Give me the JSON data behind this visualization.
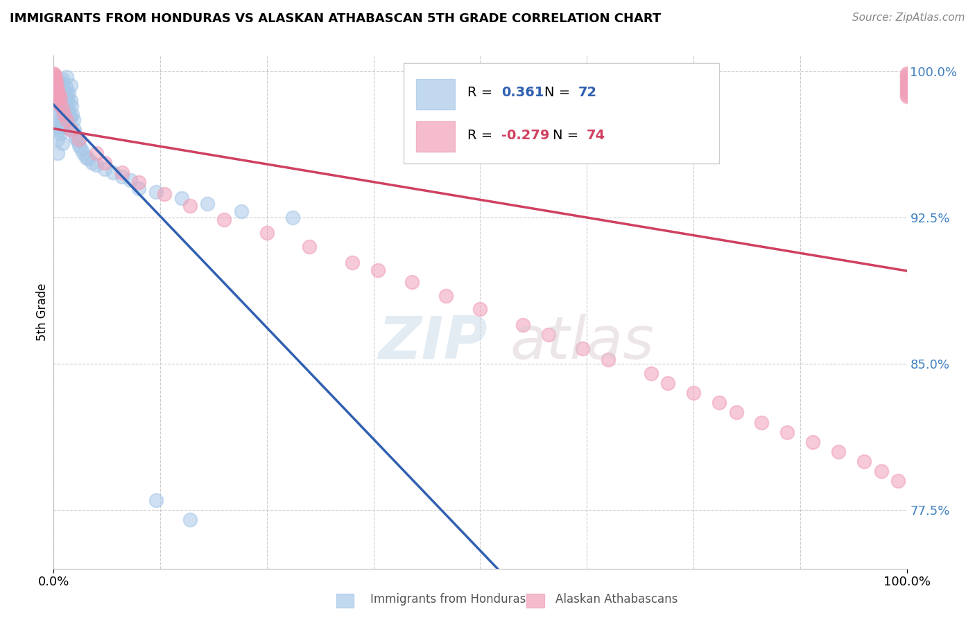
{
  "title": "IMMIGRANTS FROM HONDURAS VS ALASKAN ATHABASCAN 5TH GRADE CORRELATION CHART",
  "source_text": "Source: ZipAtlas.com",
  "ylabel": "5th Grade",
  "xlim": [
    0.0,
    1.0
  ],
  "ylim": [
    0.745,
    1.008
  ],
  "yticks": [
    0.775,
    0.85,
    0.925,
    1.0
  ],
  "ytick_labels": [
    "77.5%",
    "85.0%",
    "92.5%",
    "100.0%"
  ],
  "xtick_labels": [
    "0.0%",
    "100.0%"
  ],
  "blue_R": 0.361,
  "blue_N": 72,
  "pink_R": -0.279,
  "pink_N": 74,
  "blue_color": "#A8C8E8",
  "pink_color": "#F0A0B8",
  "blue_line_color": "#3060B0",
  "pink_line_color": "#D04060",
  "legend_blue_label": "Immigrants from Honduras",
  "legend_pink_label": "Alaskan Athabascans",
  "watermark_zip": "ZIP",
  "watermark_atlas": "atlas",
  "background_color": "#ffffff",
  "grid_color": "#cccccc",
  "ytick_color": "#4080C0",
  "blue_x": [
    0.003,
    0.005,
    0.005,
    0.005,
    0.005,
    0.006,
    0.007,
    0.007,
    0.007,
    0.008,
    0.008,
    0.008,
    0.008,
    0.009,
    0.009,
    0.009,
    0.01,
    0.01,
    0.01,
    0.01,
    0.01,
    0.011,
    0.011,
    0.011,
    0.012,
    0.012,
    0.012,
    0.013,
    0.013,
    0.014,
    0.014,
    0.014,
    0.015,
    0.015,
    0.015,
    0.015,
    0.016,
    0.016,
    0.017,
    0.017,
    0.018,
    0.018,
    0.019,
    0.02,
    0.02,
    0.02,
    0.021,
    0.022,
    0.023,
    0.024,
    0.025,
    0.026,
    0.028,
    0.03,
    0.032,
    0.035,
    0.038,
    0.04,
    0.045,
    0.05,
    0.06,
    0.07,
    0.08,
    0.09,
    0.1,
    0.12,
    0.15,
    0.18,
    0.22,
    0.28,
    0.12,
    0.16
  ],
  "blue_y": [
    0.99,
    0.98,
    0.972,
    0.965,
    0.958,
    0.995,
    0.988,
    0.978,
    0.97,
    0.993,
    0.985,
    0.975,
    0.968,
    0.991,
    0.982,
    0.973,
    0.996,
    0.988,
    0.98,
    0.972,
    0.963,
    0.994,
    0.985,
    0.976,
    0.99,
    0.981,
    0.972,
    0.988,
    0.979,
    0.992,
    0.983,
    0.974,
    0.997,
    0.989,
    0.98,
    0.971,
    0.986,
    0.977,
    0.984,
    0.975,
    0.989,
    0.98,
    0.977,
    0.993,
    0.985,
    0.976,
    0.982,
    0.978,
    0.975,
    0.97,
    0.968,
    0.966,
    0.964,
    0.962,
    0.96,
    0.958,
    0.956,
    0.955,
    0.953,
    0.952,
    0.95,
    0.948,
    0.946,
    0.944,
    0.94,
    0.938,
    0.935,
    0.932,
    0.928,
    0.925,
    0.78,
    0.77
  ],
  "pink_x": [
    0.0,
    0.0,
    0.0,
    0.0,
    0.0,
    0.0,
    0.0,
    0.0,
    0.0,
    0.0,
    0.0,
    0.001,
    0.001,
    0.001,
    0.001,
    0.002,
    0.002,
    0.003,
    0.003,
    0.004,
    0.004,
    0.005,
    0.005,
    0.006,
    0.007,
    0.008,
    0.01,
    0.012,
    0.015,
    0.02,
    0.03,
    0.05,
    0.06,
    0.08,
    0.1,
    0.13,
    0.16,
    0.2,
    0.25,
    0.3,
    0.35,
    0.38,
    0.42,
    0.46,
    0.5,
    0.55,
    0.58,
    0.62,
    0.65,
    0.7,
    0.72,
    0.75,
    0.78,
    0.8,
    0.83,
    0.86,
    0.89,
    0.92,
    0.95,
    0.97,
    0.99,
    1.0,
    1.0,
    1.0,
    1.0,
    1.0,
    1.0,
    1.0,
    1.0,
    1.0,
    1.0,
    1.0,
    1.0,
    1.0
  ],
  "pink_y": [
    0.999,
    0.998,
    0.997,
    0.996,
    0.995,
    0.994,
    0.993,
    0.992,
    0.991,
    0.99,
    0.989,
    0.998,
    0.995,
    0.992,
    0.988,
    0.996,
    0.991,
    0.994,
    0.989,
    0.992,
    0.987,
    0.99,
    0.985,
    0.988,
    0.983,
    0.986,
    0.981,
    0.978,
    0.975,
    0.97,
    0.965,
    0.958,
    0.953,
    0.948,
    0.943,
    0.937,
    0.931,
    0.924,
    0.917,
    0.91,
    0.902,
    0.898,
    0.892,
    0.885,
    0.878,
    0.87,
    0.865,
    0.858,
    0.852,
    0.845,
    0.84,
    0.835,
    0.83,
    0.825,
    0.82,
    0.815,
    0.81,
    0.805,
    0.8,
    0.795,
    0.79,
    0.999,
    0.998,
    0.997,
    0.996,
    0.995,
    0.994,
    0.993,
    0.992,
    0.991,
    0.99,
    0.989,
    0.988,
    0.987
  ]
}
